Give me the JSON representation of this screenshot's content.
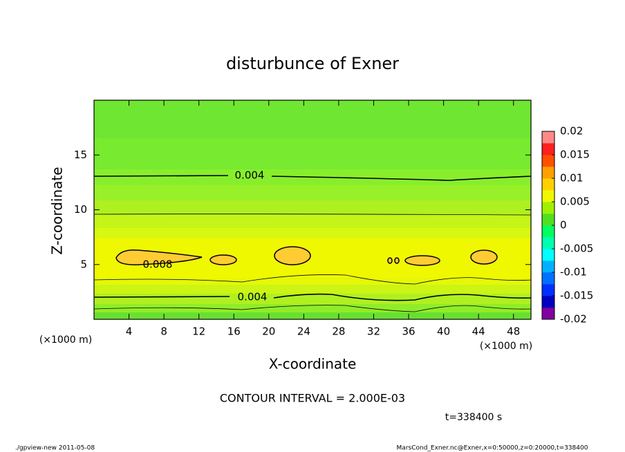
{
  "chart_data": {
    "type": "contour",
    "title": "disturbunce of Exner",
    "x_label": "X-coordinate",
    "y_label": "Z-coordinate",
    "x_unit": "(×1000 m)",
    "y_unit": "(×1000 m)",
    "xlim": [
      0,
      50
    ],
    "ylim": [
      0,
      20
    ],
    "xticks": [
      4,
      8,
      12,
      16,
      20,
      24,
      28,
      32,
      36,
      40,
      44,
      48
    ],
    "yticks": [
      5,
      10,
      15
    ],
    "contour_labels": [
      0.004,
      0.008,
      0.004
    ],
    "contour_interval": "CONTOUR INTERVAL = 2.000E-03",
    "time": "t=338400 s",
    "colorbar": {
      "lim": [
        -0.02,
        0.02
      ],
      "ticks": [
        -0.02,
        -0.015,
        -0.01,
        -0.005,
        0,
        0.005,
        0.01,
        0.015,
        0.02
      ],
      "colors": [
        "#8000a0",
        "#0000c0",
        "#0030ff",
        "#0070ff",
        "#00b0ff",
        "#00ffff",
        "#00ffb0",
        "#00ff60",
        "#50e020",
        "#a0f000",
        "#f0f800",
        "#ffd000",
        "#ffa000",
        "#ff5000",
        "#ff2020",
        "#ff8888"
      ]
    }
  },
  "footer": {
    "left": "./gpview-new  2011-05-08",
    "right": "MarsCond_Exner.nc@Exner,x=0:50000,z=0:20000,t=338400"
  }
}
